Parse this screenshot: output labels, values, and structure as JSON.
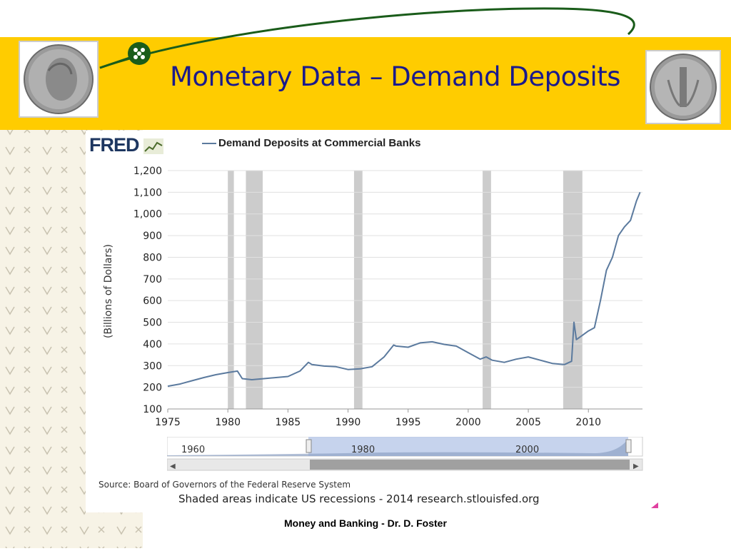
{
  "slide": {
    "title": "Monetary Data – Demand Deposits",
    "footer": "Money and Banking - Dr. D. Foster"
  },
  "colors": {
    "banner": "#ffcc00",
    "title": "#1a1a8c",
    "line": "#5b7a9e",
    "recession": "#cccccc",
    "accent_green": "#1a5c1a"
  },
  "fred": {
    "logo": "FRED",
    "legend": "Demand Deposits at Commercial Banks",
    "source": "Source: Board of Governors of the Federal Reserve System",
    "note": "Shaded areas indicate US recessions - 2014 research.stlouisfed.org"
  },
  "navigator": {
    "labels": [
      "1960",
      "1980",
      "2000"
    ],
    "range_start_year": 1975,
    "range_end_year": 2014
  },
  "chart_data": {
    "type": "line",
    "title": "Demand Deposits at Commercial Banks",
    "xlabel": "",
    "ylabel": "(Billions of Dollars)",
    "xlim": [
      1975,
      2014.5
    ],
    "ylim": [
      100,
      1200
    ],
    "xticks": [
      1975,
      1980,
      1985,
      1990,
      1995,
      2000,
      2005,
      2010
    ],
    "yticks": [
      100,
      200,
      300,
      400,
      500,
      600,
      700,
      800,
      900,
      1000,
      1100,
      1200
    ],
    "ytick_labels": [
      "100",
      "200",
      "300",
      "400",
      "500",
      "600",
      "700",
      "800",
      "900",
      "1,000",
      "1,100",
      "1,200"
    ],
    "grid": "horizontal",
    "recessions": [
      [
        1980.0,
        1980.5
      ],
      [
        1981.5,
        1982.9
      ],
      [
        1990.5,
        1991.2
      ],
      [
        2001.2,
        2001.9
      ],
      [
        2007.9,
        2009.5
      ]
    ],
    "series": [
      {
        "name": "Demand Deposits at Commercial Banks",
        "x": [
          1975,
          1976,
          1977,
          1978,
          1979,
          1980,
          1980.8,
          1981.2,
          1982,
          1983,
          1984,
          1985,
          1986,
          1986.7,
          1987,
          1988,
          1989,
          1990,
          1991,
          1992,
          1993,
          1993.8,
          1994,
          1995,
          1996,
          1997,
          1998,
          1999,
          2000,
          2001,
          2001.5,
          2002,
          2003,
          2004,
          2005,
          2006,
          2007,
          2008,
          2008.6,
          2008.8,
          2009,
          2009.5,
          2010,
          2010.5,
          2011,
          2011.5,
          2012,
          2012.5,
          2013,
          2013.5,
          2014,
          2014.3
        ],
        "values": [
          205,
          215,
          230,
          245,
          258,
          268,
          275,
          240,
          235,
          240,
          245,
          250,
          275,
          315,
          305,
          298,
          295,
          282,
          285,
          295,
          340,
          395,
          390,
          385,
          405,
          410,
          398,
          390,
          360,
          330,
          340,
          325,
          315,
          330,
          340,
          325,
          310,
          305,
          320,
          500,
          420,
          440,
          460,
          475,
          600,
          740,
          800,
          900,
          940,
          970,
          1060,
          1100
        ]
      }
    ]
  }
}
